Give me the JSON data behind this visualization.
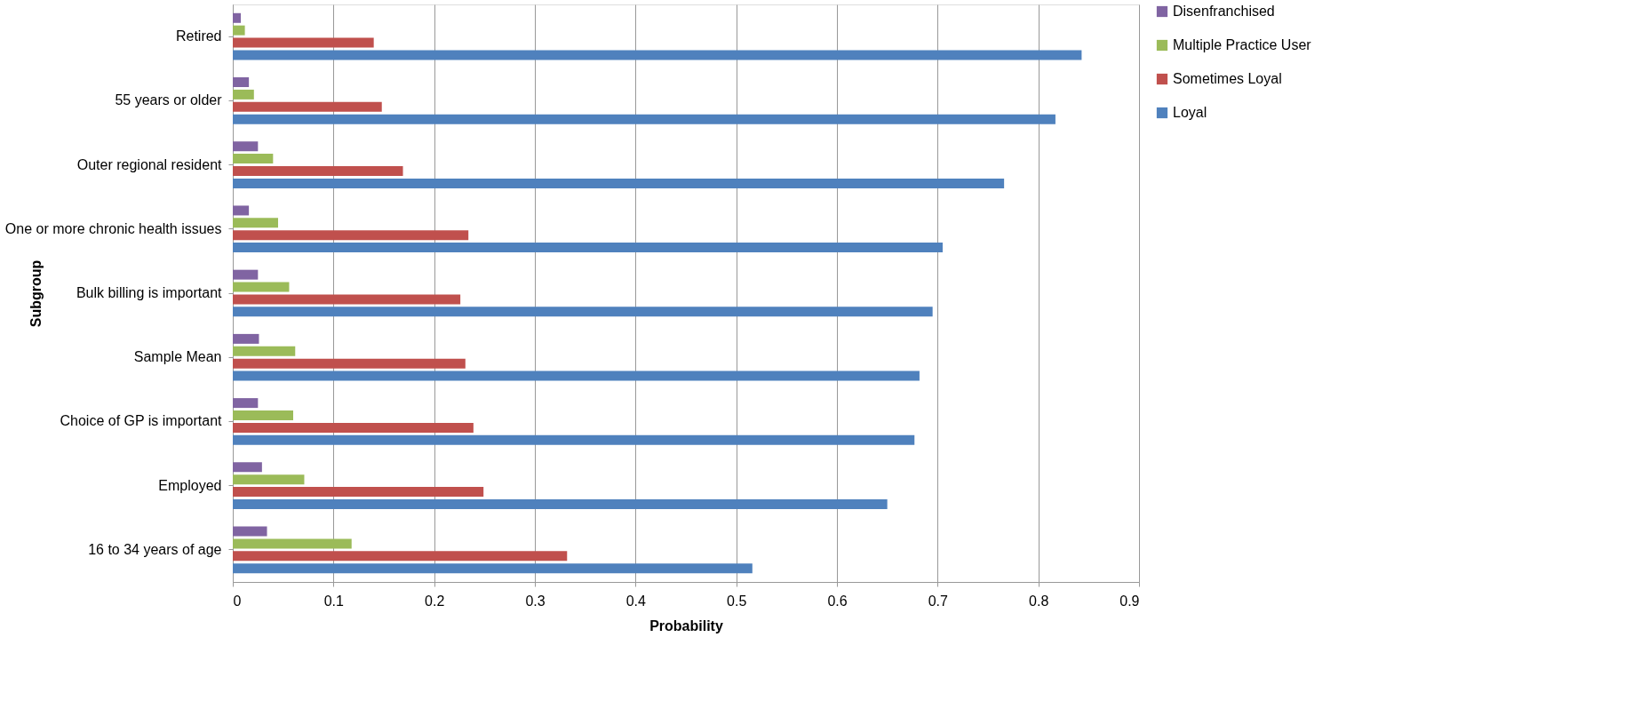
{
  "chart_data": {
    "type": "bar",
    "orientation": "horizontal",
    "xlabel": "Probability",
    "ylabel": "Subgroup",
    "categories": [
      "Retired",
      "55 years or older",
      "Outer regional resident",
      "One or more chronic health issues",
      "Bulk billing is important",
      "Sample Mean",
      "Choice of GP is important",
      "Employed",
      "16 to 34 years of age"
    ],
    "series": [
      {
        "name": "Disenfranchised",
        "color": "#8064a2",
        "values": [
          0.008,
          0.016,
          0.025,
          0.016,
          0.025,
          0.026,
          0.025,
          0.029,
          0.034
        ]
      },
      {
        "name": "Multiple Practice User",
        "color": "#9bbb59",
        "values": [
          0.012,
          0.021,
          0.04,
          0.045,
          0.056,
          0.062,
          0.06,
          0.071,
          0.118
        ]
      },
      {
        "name": "Sometimes Loyal",
        "color": "#c0504d",
        "values": [
          0.14,
          0.148,
          0.169,
          0.234,
          0.226,
          0.231,
          0.239,
          0.249,
          0.332
        ]
      },
      {
        "name": "Loyal",
        "color": "#4f81bd",
        "values": [
          0.843,
          0.817,
          0.766,
          0.705,
          0.695,
          0.682,
          0.677,
          0.65,
          0.516
        ]
      }
    ],
    "xlim": [
      0,
      0.9
    ],
    "xticks": [
      0,
      0.1,
      0.2,
      0.3,
      0.4,
      0.5,
      0.6,
      0.7,
      0.8,
      0.9
    ],
    "grid": "x",
    "legend": "right"
  }
}
